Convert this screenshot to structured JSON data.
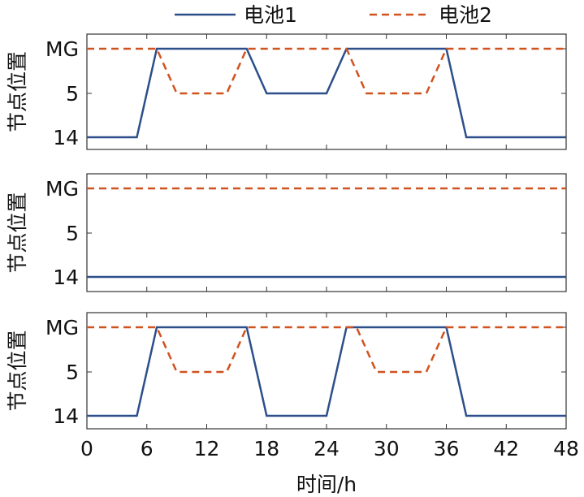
{
  "chart_data": {
    "type": "line",
    "legend": {
      "placement": "top",
      "items": [
        {
          "name": "电池1",
          "color": "#2c4f8a",
          "dash": "solid"
        },
        {
          "name": "电池2",
          "color": "#d0521f",
          "dash": "dashed"
        }
      ]
    },
    "xlabel": "时间/h",
    "xlim": [
      0,
      48
    ],
    "xticks": [
      0,
      6,
      12,
      18,
      24,
      30,
      36,
      42,
      48
    ],
    "ylabel": "节点位置",
    "yticks": [
      "MG",
      "5",
      "14"
    ],
    "panels": [
      {
        "series": [
          {
            "name": "电池1",
            "x": [
              0,
              5,
              7,
              16,
              18,
              24,
              26,
              36,
              38,
              48
            ],
            "y": [
              "14",
              "14",
              "MG",
              "MG",
              "5",
              "5",
              "MG",
              "MG",
              "14",
              "14"
            ]
          },
          {
            "name": "电池2",
            "x": [
              0,
              7,
              9,
              14,
              16,
              26,
              28,
              34,
              36,
              48
            ],
            "y": [
              "MG",
              "MG",
              "5",
              "5",
              "MG",
              "MG",
              "5",
              "5",
              "MG",
              "MG"
            ]
          }
        ]
      },
      {
        "series": [
          {
            "name": "电池1",
            "x": [
              0,
              48
            ],
            "y": [
              "14",
              "14"
            ]
          },
          {
            "name": "电池2",
            "x": [
              0,
              48
            ],
            "y": [
              "MG",
              "MG"
            ]
          }
        ]
      },
      {
        "series": [
          {
            "name": "电池1",
            "x": [
              0,
              5,
              7,
              16,
              18,
              24,
              26,
              36,
              38,
              48
            ],
            "y": [
              "14",
              "14",
              "MG",
              "MG",
              "14",
              "14",
              "MG",
              "MG",
              "14",
              "14"
            ]
          },
          {
            "name": "电池2",
            "x": [
              0,
              7,
              9,
              14,
              16,
              27,
              29,
              34,
              36,
              48
            ],
            "y": [
              "MG",
              "MG",
              "5",
              "5",
              "MG",
              "MG",
              "5",
              "5",
              "MG",
              "MG"
            ]
          }
        ]
      }
    ]
  }
}
